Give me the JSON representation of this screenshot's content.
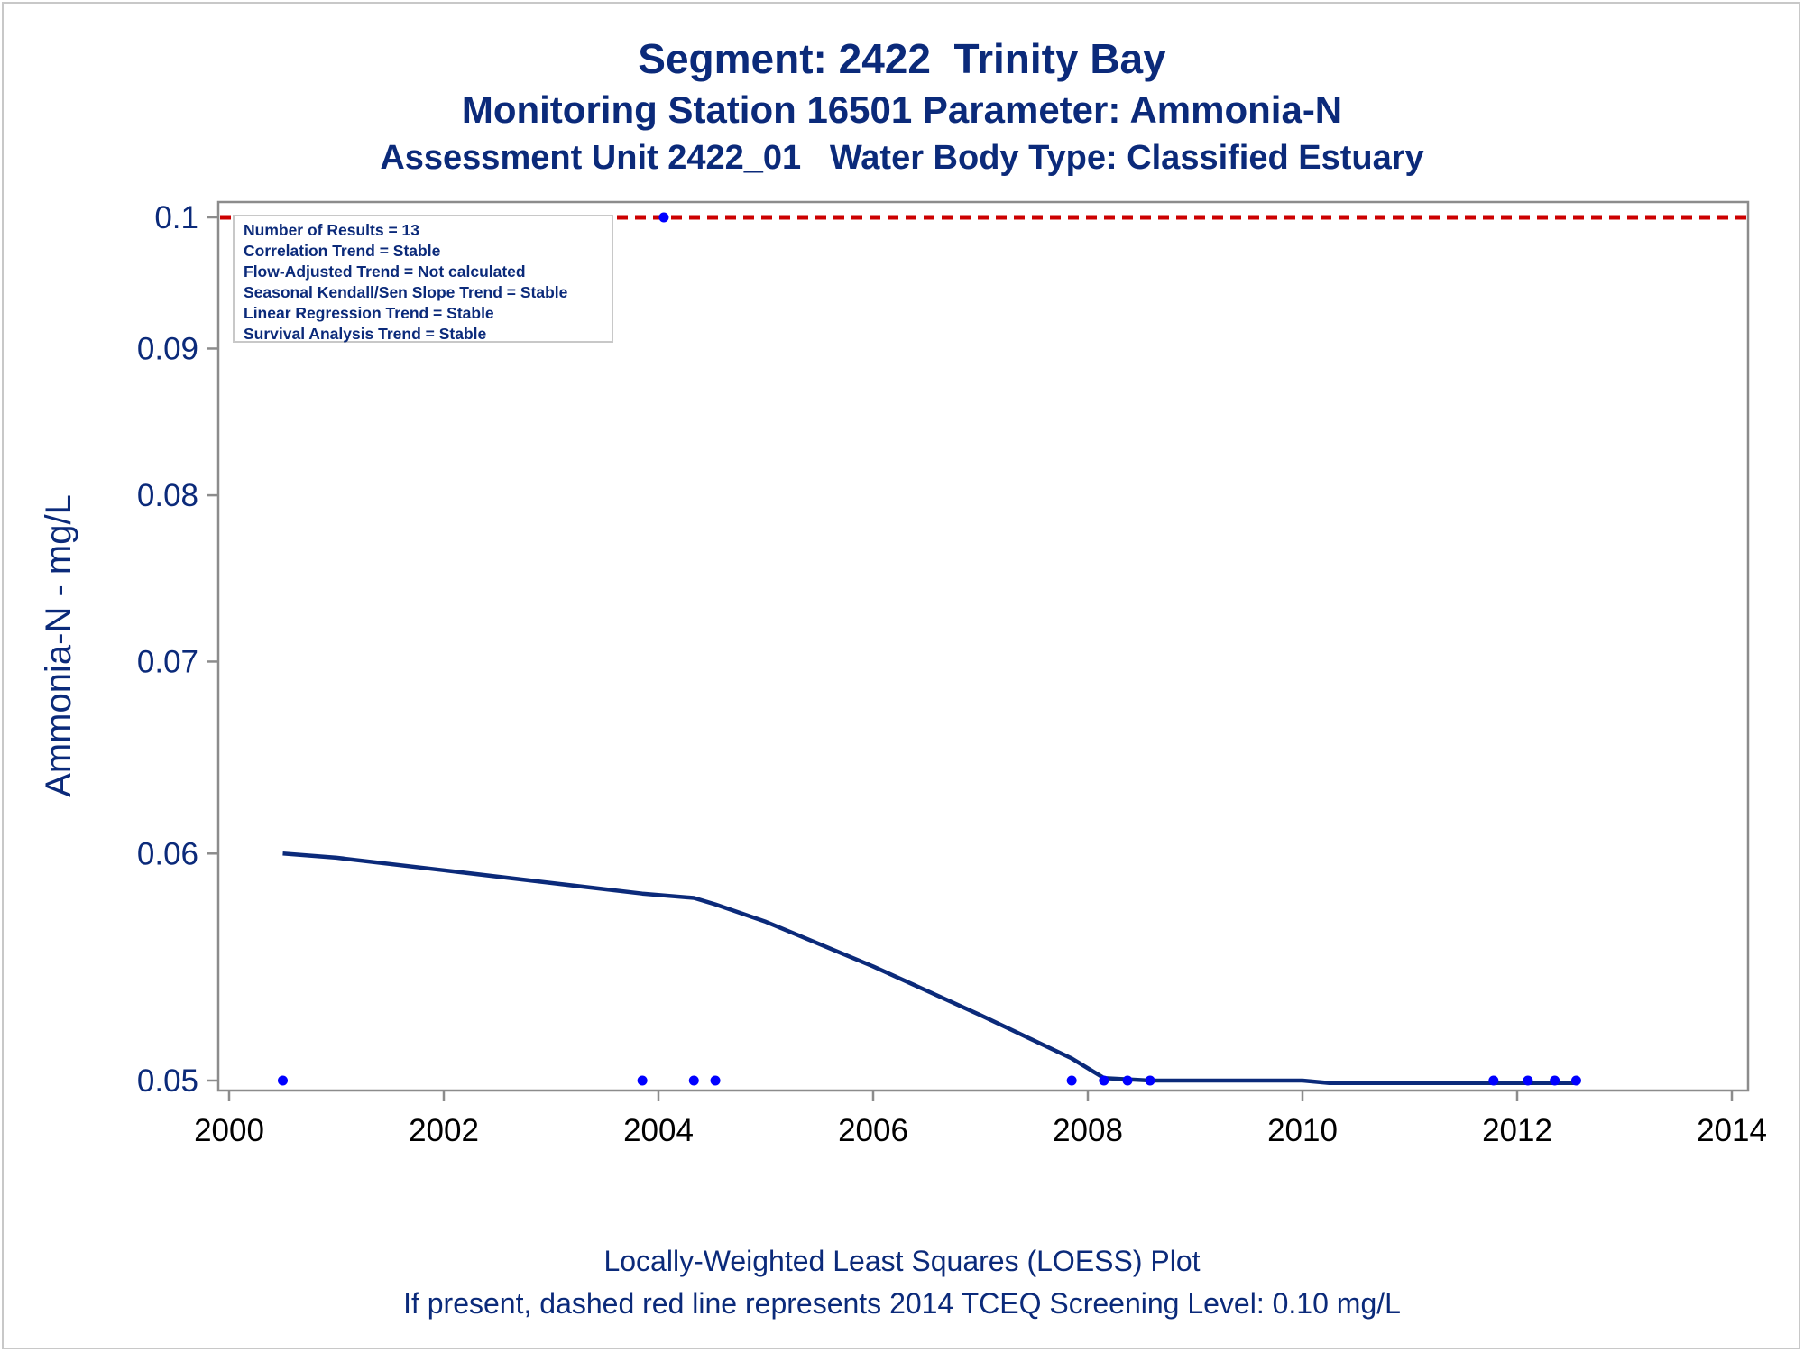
{
  "titles": {
    "line1": "Segment: 2422  Trinity Bay",
    "line2": "Monitoring Station 16501 Parameter: Ammonia-N",
    "line3": "Assessment Unit 2422_01   Water Body Type: Classified Estuary"
  },
  "stats_box": [
    "Number of Results = 13",
    "Correlation Trend = Stable",
    "Flow-Adjusted Trend = Not calculated",
    "Seasonal Kendall/Sen Slope Trend = Stable",
    "Linear Regression Trend = Stable",
    "Survival Analysis Trend = Stable"
  ],
  "footnotes": {
    "line1": "Locally-Weighted Least Squares (LOESS) Plot",
    "line2": "If present, dashed red line represents 2014 TCEQ Screening Level: 0.10 mg/L"
  },
  "colors": {
    "text": "#0b2a7a",
    "points": "#0000ff",
    "loess": "#0b2a7a",
    "screening_line": "#cc0000",
    "axis": "#8c8c8c"
  },
  "chart_data": {
    "type": "scatter",
    "ylabel": "Ammonia-N - mg/L",
    "xlabel": "",
    "xlim": [
      2000,
      2014
    ],
    "ylim": [
      0.05,
      0.1
    ],
    "y_scale": "log",
    "x_ticks": [
      2000,
      2002,
      2004,
      2006,
      2008,
      2010,
      2012,
      2014
    ],
    "y_ticks": [
      0.05,
      0.06,
      0.07,
      0.08,
      0.09,
      0.1
    ],
    "y_tick_labels": [
      "0.05",
      "0.06",
      "0.07",
      "0.08",
      "0.09",
      "0.1"
    ],
    "points": {
      "x": [
        2000.5,
        2003.85,
        2004.05,
        2004.33,
        2004.53,
        2007.85,
        2008.15,
        2008.37,
        2008.58,
        2011.78,
        2012.1,
        2012.35,
        2012.55
      ],
      "y": [
        0.05,
        0.05,
        0.1,
        0.05,
        0.05,
        0.05,
        0.05,
        0.05,
        0.05,
        0.05,
        0.05,
        0.05,
        0.05
      ]
    },
    "loess": {
      "x": [
        2000.5,
        2001.0,
        2002.0,
        2003.0,
        2003.85,
        2004.33,
        2004.53,
        2005.0,
        2006.0,
        2007.0,
        2007.85,
        2008.15,
        2008.58,
        2010.0,
        2010.25,
        2011.78,
        2012.55
      ],
      "y": [
        0.06,
        0.0598,
        0.0592,
        0.0586,
        0.0581,
        0.0579,
        0.0576,
        0.0568,
        0.0548,
        0.0527,
        0.0509,
        0.0501,
        0.05,
        0.05,
        0.0499,
        0.0499,
        0.0499
      ]
    },
    "reference_line": {
      "y": 0.1,
      "style": "dashed"
    }
  }
}
